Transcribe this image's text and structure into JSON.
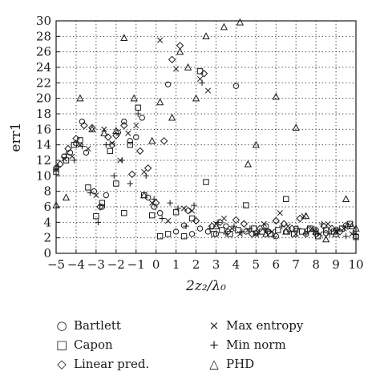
{
  "chart_data": {
    "type": "scatter",
    "title": "",
    "xlabel": "2z₂/λ₀",
    "ylabel": "err1",
    "xlim": [
      -5,
      10
    ],
    "ylim": [
      0,
      30
    ],
    "xticks": [
      -5,
      -4,
      -3,
      -2,
      -1,
      0,
      1,
      2,
      3,
      4,
      5,
      6,
      7,
      8,
      9,
      10
    ],
    "yticks": [
      0,
      2,
      4,
      6,
      8,
      10,
      12,
      14,
      16,
      18,
      20,
      22,
      24,
      26,
      28,
      30
    ],
    "grid": true,
    "legend_position": "below",
    "series": [
      {
        "name": "Bartlett",
        "marker": "circle",
        "x": [
          -5,
          -4.6,
          -4.3,
          -4.0,
          -3.7,
          -3.5,
          -3.1,
          -2.7,
          -2.5,
          -2.2,
          -1.9,
          -1.6,
          -1.3,
          -1.0,
          -0.7,
          -0.4,
          -0.1,
          0.2,
          0.6,
          1.0,
          1.4,
          1.8,
          2.2,
          2.6,
          3.0,
          3.5,
          4.0,
          4.5,
          5.0,
          5.5,
          6.0,
          6.5,
          7.0,
          7.5,
          8.0,
          8.5,
          9.0,
          9.5,
          10
        ],
        "y": [
          11,
          12.5,
          13,
          14.2,
          17,
          13,
          8,
          6,
          7.5,
          14,
          15.6,
          17,
          14.5,
          15,
          17.5,
          7.2,
          6,
          5.2,
          21.8,
          2.8,
          3.6,
          2.5,
          3.2,
          2.8,
          2.5,
          3.5,
          21.6,
          2.8,
          2.6,
          3.5,
          2.2,
          2.8,
          3.2,
          2.5,
          3.0,
          2.6,
          3.0,
          3.6,
          2.2
        ]
      },
      {
        "name": "Capon",
        "marker": "square",
        "x": [
          -5,
          -4.5,
          -4.1,
          -3.8,
          -3.4,
          -3.0,
          -2.7,
          -2.3,
          -2.0,
          -1.6,
          -1.3,
          -0.9,
          -0.6,
          -0.2,
          0.2,
          0.6,
          1.0,
          1.4,
          1.8,
          2.2,
          2.5,
          2.9,
          3.3,
          3.7,
          4.1,
          4.5,
          4.9,
          5.3,
          5.7,
          6.1,
          6.5,
          6.9,
          7.3,
          7.7,
          8.1,
          8.5,
          8.9,
          9.3,
          9.7,
          10
        ],
        "y": [
          10.5,
          12,
          14,
          14.6,
          8.5,
          4.8,
          6.5,
          13.2,
          9,
          5.2,
          14,
          18.8,
          7.5,
          4.9,
          2.2,
          2.5,
          5.3,
          2.2,
          4.5,
          23.5,
          9.2,
          2.5,
          3,
          2.5,
          3,
          6.2,
          3.2,
          2.8,
          2.5,
          3.0,
          7,
          2.5,
          2.8,
          3.2,
          2.2,
          3,
          2.8,
          3.2,
          3.8,
          2.1
        ]
      },
      {
        "name": "Linear pred.",
        "marker": "diamond",
        "x": [
          -4.8,
          -4.4,
          -4.0,
          -3.6,
          -3.2,
          -2.8,
          -2.4,
          -2.0,
          -1.6,
          -1.2,
          -0.8,
          -0.4,
          0.0,
          0.4,
          0.8,
          1.2,
          1.6,
          2.0,
          2.4,
          2.8,
          3.2,
          3.6,
          4.0,
          4.4,
          4.8,
          5.2,
          5.6,
          6.0,
          6.4,
          6.8,
          7.2,
          7.6,
          8.0,
          8.4,
          8.8,
          9.2,
          9.6
        ],
        "y": [
          11.5,
          13.5,
          14.8,
          16.5,
          16.2,
          6,
          15,
          15.2,
          16.5,
          10.2,
          13.2,
          11,
          6.5,
          14.5,
          25,
          26.8,
          5.5,
          4.2,
          23.2,
          3.5,
          4,
          2.8,
          4.3,
          3.8,
          2.5,
          3.2,
          2.8,
          4.2,
          3.8,
          3.2,
          4.5,
          3,
          2.5,
          3.5,
          3.2,
          2.8,
          3.5
        ]
      },
      {
        "name": "Max entropy",
        "marker": "x",
        "x": [
          -5,
          -4.6,
          -4.2,
          -3.8,
          -3.4,
          -3.0,
          -2.6,
          -2.2,
          -1.8,
          -1.4,
          -1.0,
          -0.6,
          -0.2,
          0.2,
          0.6,
          1.0,
          1.4,
          1.8,
          2.2,
          2.6,
          3.0,
          3.4,
          3.8,
          4.2,
          4.6,
          5.0,
          5.4,
          5.8,
          6.2,
          6.6,
          7.0,
          7.4,
          7.8,
          8.2,
          8.6,
          9.0,
          9.4,
          9.8
        ],
        "y": [
          10.8,
          12.2,
          12.5,
          14,
          13.5,
          7.5,
          16,
          14.2,
          12,
          15.5,
          16.5,
          10.5,
          6.5,
          27.5,
          4.2,
          23.8,
          5.8,
          5.5,
          22.5,
          21,
          3.8,
          4.5,
          3.2,
          2.5,
          3,
          2.5,
          3.8,
          2.8,
          5.2,
          3.5,
          2.5,
          4.8,
          3.2,
          2.5,
          3.8,
          2.8,
          3.2,
          2.5
        ]
      },
      {
        "name": "Min norm",
        "marker": "plus",
        "x": [
          -4.9,
          -4.5,
          -4.1,
          -3.7,
          -3.3,
          -2.9,
          -2.5,
          -2.1,
          -1.7,
          -1.3,
          -0.9,
          -0.5,
          -0.1,
          0.3,
          0.7,
          1.1,
          1.5,
          1.9,
          2.3,
          2.7,
          3.1,
          3.5,
          3.9,
          4.3,
          4.7,
          5.1,
          5.5,
          5.9,
          6.3,
          6.7,
          7.1,
          7.5,
          7.9,
          8.3,
          8.7,
          9.1,
          9.5,
          9.9
        ],
        "y": [
          11.2,
          12.8,
          12,
          13.8,
          7.8,
          4,
          14,
          10,
          12,
          9,
          18,
          10,
          7,
          4.5,
          6.5,
          5.8,
          3.5,
          6.2,
          22,
          3.2,
          4,
          2.5,
          3.5,
          2.8,
          3.2,
          2.5,
          3,
          2.2,
          3.5,
          2.8,
          3.2,
          2.5,
          2.8,
          3.8,
          2.5,
          3,
          2.2,
          2.6
        ]
      },
      {
        "name": "PHD",
        "marker": "triangle",
        "x": [
          -5,
          -4.5,
          -3.8,
          -3.2,
          -2.6,
          -2.0,
          -1.6,
          -1.1,
          -0.6,
          -0.2,
          0.2,
          0.8,
          1.2,
          1.6,
          2.0,
          2.5,
          3.0,
          3.4,
          4.2,
          4.6,
          5.0,
          5.5,
          6.0,
          6.5,
          7.0,
          7.5,
          8.0,
          8.5,
          9.0,
          9.5,
          9.8,
          10
        ],
        "y": [
          6.2,
          7.2,
          20,
          16,
          15.5,
          15.8,
          27.8,
          20,
          7.5,
          14.5,
          19.5,
          17.5,
          26,
          24,
          20,
          28,
          3.5,
          29.2,
          29.8,
          11.5,
          14,
          2.5,
          20.2,
          2.8,
          16.2,
          4.8,
          2.8,
          1.8,
          2.5,
          7,
          3.5,
          3.2
        ]
      }
    ]
  }
}
